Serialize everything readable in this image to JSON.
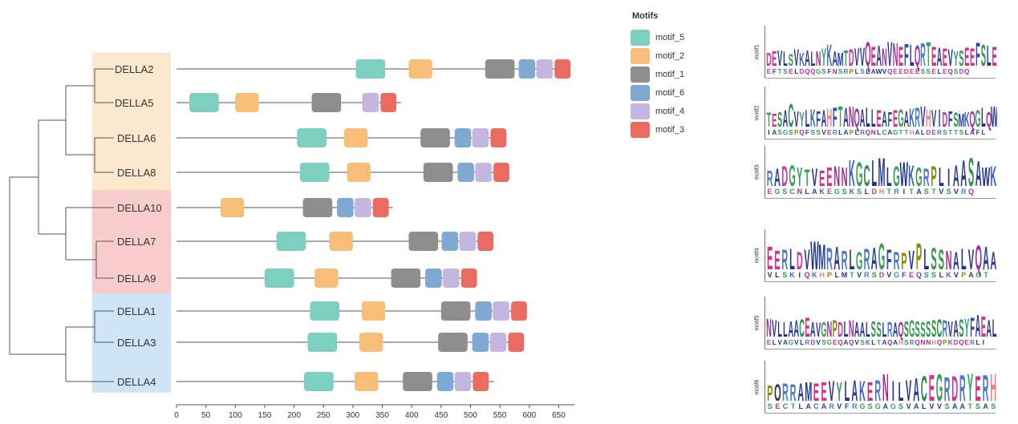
{
  "chart_data": {
    "type": "motif-diagram",
    "xlabel": "",
    "xlim": [
      0,
      650
    ],
    "xticks": [
      0,
      50,
      100,
      150,
      200,
      250,
      300,
      350,
      400,
      450,
      500,
      550,
      600,
      650
    ],
    "legend": {
      "title": "Motifs",
      "placement": "top-right",
      "items": [
        {
          "name": "motif_5",
          "color": "#7dcfc0"
        },
        {
          "name": "motif_2",
          "color": "#f8be78"
        },
        {
          "name": "motif_1",
          "color": "#8e8e8e"
        },
        {
          "name": "motif_6",
          "color": "#7ea9d3"
        },
        {
          "name": "motif_4",
          "color": "#c4b6de"
        },
        {
          "name": "motif_3",
          "color": "#ec6b61"
        }
      ]
    },
    "clades": [
      {
        "color": "#fbe9cf",
        "members": [
          "DELLA2",
          "DELLA5",
          "DELLA6",
          "DELLA8"
        ]
      },
      {
        "color": "#f9cdcd",
        "members": [
          "DELLA10",
          "DELLA7",
          "DELLA9"
        ]
      },
      {
        "color": "#cfe4f4",
        "members": [
          "DELLA1",
          "DELLA3",
          "DELLA4"
        ]
      }
    ],
    "genes": [
      {
        "name": "DELLA2",
        "length": 670,
        "motifs": [
          {
            "motif": "motif_5",
            "start": 305,
            "end": 355
          },
          {
            "motif": "motif_2",
            "start": 395,
            "end": 435
          },
          {
            "motif": "motif_1",
            "start": 525,
            "end": 575
          },
          {
            "motif": "motif_6",
            "start": 582,
            "end": 610
          },
          {
            "motif": "motif_4",
            "start": 612,
            "end": 640
          },
          {
            "motif": "motif_3",
            "start": 643,
            "end": 670
          }
        ]
      },
      {
        "name": "DELLA5",
        "length": 382,
        "motifs": [
          {
            "motif": "motif_5",
            "start": 22,
            "end": 72
          },
          {
            "motif": "motif_2",
            "start": 100,
            "end": 140
          },
          {
            "motif": "motif_1",
            "start": 230,
            "end": 280
          },
          {
            "motif": "motif_4",
            "start": 316,
            "end": 344
          },
          {
            "motif": "motif_3",
            "start": 347,
            "end": 374
          }
        ]
      },
      {
        "name": "DELLA6",
        "length": 557,
        "motifs": [
          {
            "motif": "motif_5",
            "start": 205,
            "end": 255
          },
          {
            "motif": "motif_2",
            "start": 285,
            "end": 325
          },
          {
            "motif": "motif_1",
            "start": 415,
            "end": 465
          },
          {
            "motif": "motif_6",
            "start": 473,
            "end": 501
          },
          {
            "motif": "motif_4",
            "start": 503,
            "end": 531
          },
          {
            "motif": "motif_3",
            "start": 534,
            "end": 561
          }
        ]
      },
      {
        "name": "DELLA8",
        "length": 562,
        "motifs": [
          {
            "motif": "motif_5",
            "start": 210,
            "end": 260
          },
          {
            "motif": "motif_2",
            "start": 290,
            "end": 330
          },
          {
            "motif": "motif_1",
            "start": 420,
            "end": 470
          },
          {
            "motif": "motif_6",
            "start": 478,
            "end": 506
          },
          {
            "motif": "motif_4",
            "start": 508,
            "end": 536
          },
          {
            "motif": "motif_3",
            "start": 539,
            "end": 566
          }
        ]
      },
      {
        "name": "DELLA10",
        "length": 368,
        "motifs": [
          {
            "motif": "motif_2",
            "start": 75,
            "end": 115
          },
          {
            "motif": "motif_1",
            "start": 215,
            "end": 265
          },
          {
            "motif": "motif_6",
            "start": 273,
            "end": 301
          },
          {
            "motif": "motif_4",
            "start": 303,
            "end": 331
          },
          {
            "motif": "motif_3",
            "start": 334,
            "end": 361
          }
        ]
      },
      {
        "name": "DELLA7",
        "length": 535,
        "motifs": [
          {
            "motif": "motif_5",
            "start": 170,
            "end": 220
          },
          {
            "motif": "motif_2",
            "start": 260,
            "end": 300
          },
          {
            "motif": "motif_1",
            "start": 395,
            "end": 445
          },
          {
            "motif": "motif_6",
            "start": 451,
            "end": 479
          },
          {
            "motif": "motif_4",
            "start": 481,
            "end": 509
          },
          {
            "motif": "motif_3",
            "start": 512,
            "end": 539
          }
        ]
      },
      {
        "name": "DELLA9",
        "length": 505,
        "motifs": [
          {
            "motif": "motif_5",
            "start": 150,
            "end": 200
          },
          {
            "motif": "motif_2",
            "start": 235,
            "end": 275
          },
          {
            "motif": "motif_1",
            "start": 365,
            "end": 415
          },
          {
            "motif": "motif_6",
            "start": 423,
            "end": 451
          },
          {
            "motif": "motif_4",
            "start": 453,
            "end": 481
          },
          {
            "motif": "motif_3",
            "start": 484,
            "end": 511
          }
        ]
      },
      {
        "name": "DELLA1",
        "length": 585,
        "motifs": [
          {
            "motif": "motif_5",
            "start": 227,
            "end": 277
          },
          {
            "motif": "motif_2",
            "start": 315,
            "end": 355
          },
          {
            "motif": "motif_1",
            "start": 450,
            "end": 500
          },
          {
            "motif": "motif_6",
            "start": 508,
            "end": 536
          },
          {
            "motif": "motif_4",
            "start": 538,
            "end": 566
          },
          {
            "motif": "motif_3",
            "start": 569,
            "end": 596
          }
        ]
      },
      {
        "name": "DELLA3",
        "length": 590,
        "motifs": [
          {
            "motif": "motif_5",
            "start": 223,
            "end": 273
          },
          {
            "motif": "motif_2",
            "start": 311,
            "end": 351
          },
          {
            "motif": "motif_1",
            "start": 445,
            "end": 495
          },
          {
            "motif": "motif_6",
            "start": 503,
            "end": 531
          },
          {
            "motif": "motif_4",
            "start": 533,
            "end": 561
          },
          {
            "motif": "motif_3",
            "start": 564,
            "end": 591
          }
        ]
      },
      {
        "name": "DELLA4",
        "length": 540,
        "motifs": [
          {
            "motif": "motif_5",
            "start": 217,
            "end": 267
          },
          {
            "motif": "motif_2",
            "start": 303,
            "end": 343
          },
          {
            "motif": "motif_1",
            "start": 385,
            "end": 435
          },
          {
            "motif": "motif_6",
            "start": 443,
            "end": 471
          },
          {
            "motif": "motif_4",
            "start": 473,
            "end": 501
          },
          {
            "motif": "motif_3",
            "start": 504,
            "end": 531
          }
        ]
      }
    ],
    "logos": [
      {
        "label": "motif1",
        "sequence": "DEVLSVKALNYKAMTDVVQEANVNEFLQRTEAEVYSEEFSLE",
        "sub": "EFTSELDQQGSFNSRPLSLAWVQEEDEESSELEQSDQ"
      },
      {
        "label": "motif2",
        "sequence": "TESACVYLKFAHFTANQALLEAFEGAKRVHVIDFSMKQGLQW",
        "sub": "IASGSPQFSSVERLAPLRQNLCAGTTHALDERSTTSLAFL"
      },
      {
        "label": "motif3",
        "sequence": "RADGYTVEENNKGCLMLGWKGRPLIAASAWK",
        "sub": "EGSCNLAKEGSKSLDHTRITASTVSVRQ"
      },
      {
        "label": "motif4",
        "sequence": "EERLDVWMRARLGRAGFRPVPLSSNALVQAA",
        "sub": "VLSKIQKHPLMTVRSDVGFEQSSLKVPAGT"
      },
      {
        "label": "motif5",
        "sequence": "NVLLAACEAVGNPDLNAALSSLRAQSGSSSSCRVASYFAEAL",
        "sub": "ELVAGVLRDVSGEQAQVSKLTAQAHSRQNNHQPKDQERLI"
      },
      {
        "label": "motif6",
        "sequence": "PORRAMEEVYLAKERNILVACEGRDRYERH",
        "sub": "SECTLACARVFRGSGAGSVALVVSAATSAS"
      }
    ]
  }
}
